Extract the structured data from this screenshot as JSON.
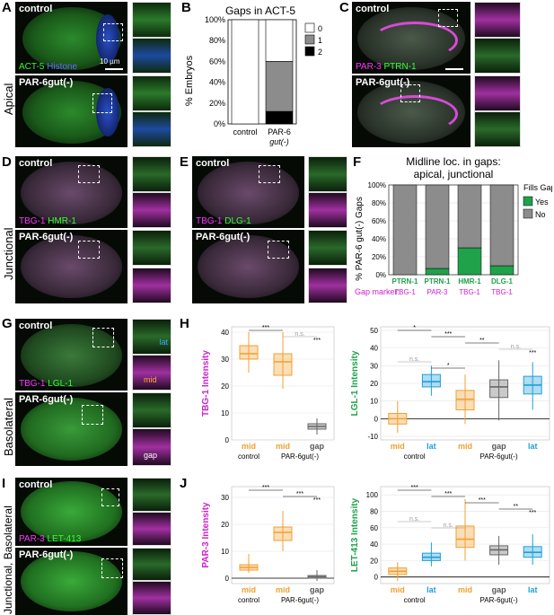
{
  "panels": {
    "A": {
      "letter": "A",
      "row": "Apical",
      "top_label": "control",
      "bottom_label": "PAR-6gut(-)",
      "stain_1": "ACT-5",
      "stain_2": "Histone",
      "scale": "10 µm"
    },
    "B": {
      "letter": "B",
      "title": "Gaps in ACT-5",
      "ylabel": "% Embryos",
      "sig": "***"
    },
    "C": {
      "letter": "C",
      "top_label": "control",
      "bottom_label": "PAR-6gut(-)",
      "stain_1": "PAR-3",
      "stain_2": "PTRN-1"
    },
    "D": {
      "letter": "D",
      "row": "Junctional",
      "top_label": "control",
      "bottom_label": "PAR-6gut(-)",
      "stain_1": "TBG-1",
      "stain_2": "HMR-1"
    },
    "E": {
      "letter": "E",
      "top_label": "control",
      "bottom_label": "PAR-6gut(-)",
      "stain_1": "TBG-1",
      "stain_2": "DLG-1"
    },
    "F": {
      "letter": "F",
      "title": "Midline loc. in gaps:",
      "title2": "apical, junctional",
      "ylabel": "% PAR-6 gut(-) Gaps",
      "legend_title": "Fills Gap",
      "legend_yes": "Yes",
      "legend_no": "No",
      "gap_marker": "Gap marker:",
      "colors": {
        "yes": "#1fa24a",
        "no": "#8c8c8c"
      }
    },
    "G": {
      "letter": "G",
      "row": "Basolateral",
      "top_label": "control",
      "bottom_label": "PAR-6gut(-)",
      "stain_1": "TBG-1",
      "stain_2": "LGL-1",
      "lat": "lat",
      "mid": "mid",
      "gap": "gap"
    },
    "H": {
      "letter": "H"
    },
    "I": {
      "letter": "I",
      "row": "Junctional, Basolateral",
      "top_label": "control",
      "bottom_label": "PAR-6gut(-)",
      "stain_1": "PAR-3",
      "stain_2": "LET-413"
    },
    "J": {
      "letter": "J"
    }
  },
  "chart_data": [
    {
      "id": "B",
      "type": "bar",
      "title": "Gaps in ACT-5",
      "ylabel": "% Embryos",
      "categories": [
        "control",
        "PAR-6 gut(-)"
      ],
      "yticks": [
        "0%",
        "20%",
        "40%",
        "60%",
        "80%",
        "100%"
      ],
      "series": [
        {
          "name": "0",
          "color": "#ffffff",
          "values": [
            100,
            40
          ]
        },
        {
          "name": "1",
          "color": "#8c8c8c",
          "values": [
            0,
            48
          ]
        },
        {
          "name": "2",
          "color": "#000000",
          "values": [
            0,
            12
          ]
        }
      ],
      "annotation": "***"
    },
    {
      "id": "F",
      "type": "bar",
      "ylabel": "% PAR-6 gut(-) Gaps",
      "categories": [
        "PTRN-1",
        "PTRN-1",
        "HMR-1",
        "DLG-1"
      ],
      "category_sub": [
        "TBG-1",
        "PAR-3",
        "TBG-1",
        "TBG-1"
      ],
      "yticks": [
        "0%",
        "20%",
        "40%",
        "60%",
        "80%",
        "100%"
      ],
      "series": [
        {
          "name": "Yes",
          "color": "#1fa24a",
          "values": [
            0,
            7,
            30,
            10
          ]
        },
        {
          "name": "No",
          "color": "#8c8c8c",
          "values": [
            100,
            93,
            70,
            90
          ]
        }
      ]
    },
    {
      "id": "H-left",
      "type": "box",
      "ylabel": "TBG-1 Intensity",
      "ylim": [
        0,
        42
      ],
      "yticks": [
        0,
        10,
        20,
        30,
        40
      ],
      "groups": [
        {
          "label": "mid",
          "color": "#f0a030",
          "q1": 30,
          "med": 32,
          "q3": 35,
          "lo": 25,
          "hi": 40
        },
        {
          "label": "mid",
          "color": "#f0a030",
          "q1": 24,
          "med": 29,
          "q3": 32,
          "lo": 19,
          "hi": 40
        },
        {
          "label": "gap",
          "color": "#666666",
          "q1": 4,
          "med": 5,
          "q3": 6,
          "lo": 2,
          "hi": 8
        }
      ],
      "xsub": [
        "control",
        "PAR-6gut(-)"
      ],
      "sigs": [
        "***",
        "n.s.",
        "***"
      ]
    },
    {
      "id": "H-right",
      "type": "box",
      "ylabel": "LGL-1 Intensity",
      "ylim": [
        -12,
        52
      ],
      "yticks": [
        -10,
        0,
        10,
        20,
        30,
        40,
        50
      ],
      "groups": [
        {
          "label": "mid",
          "color": "#f0a030",
          "q1": -3,
          "med": 0,
          "q3": 3,
          "lo": -8,
          "hi": 10
        },
        {
          "label": "lat",
          "color": "#1e9fd8",
          "q1": 18,
          "med": 21,
          "q3": 25,
          "lo": 13,
          "hi": 30
        },
        {
          "label": "mid",
          "color": "#f0a030",
          "q1": 5,
          "med": 11,
          "q3": 16,
          "lo": -3,
          "hi": 25
        },
        {
          "label": "gap",
          "color": "#666666",
          "q1": 12,
          "med": 18,
          "q3": 22,
          "lo": -1,
          "hi": 33
        },
        {
          "label": "lat",
          "color": "#1e9fd8",
          "q1": 14,
          "med": 19,
          "q3": 24,
          "lo": 5,
          "hi": 32
        }
      ],
      "xsub": [
        "control",
        "PAR-6gut(-)"
      ],
      "sigs": [
        "*",
        "***",
        "**",
        "n.s.",
        "***",
        "n.s.",
        "*"
      ]
    },
    {
      "id": "J-left",
      "type": "box",
      "ylabel": "PAR-3 Intensity",
      "ylim": [
        -2,
        34
      ],
      "yticks": [
        0,
        10,
        20,
        30
      ],
      "groups": [
        {
          "label": "mid",
          "color": "#f0a030",
          "q1": 3,
          "med": 4,
          "q3": 5,
          "lo": 2,
          "hi": 9
        },
        {
          "label": "mid",
          "color": "#f0a030",
          "q1": 14,
          "med": 17,
          "q3": 19,
          "lo": 10,
          "hi": 25
        },
        {
          "label": "gap",
          "color": "#666666",
          "q1": 0,
          "med": 0.5,
          "q3": 1,
          "lo": -1,
          "hi": 3
        }
      ],
      "xsub": [
        "control",
        "PAR-6gut(-)"
      ],
      "sigs": [
        "***",
        "***",
        "***"
      ]
    },
    {
      "id": "J-right",
      "type": "box",
      "ylabel": "LET-413 Intensity",
      "ylim": [
        -8,
        110
      ],
      "yticks": [
        0,
        20,
        40,
        60,
        80,
        100
      ],
      "groups": [
        {
          "label": "mid",
          "color": "#f0a030",
          "q1": 3,
          "med": 7,
          "q3": 11,
          "lo": -5,
          "hi": 18
        },
        {
          "label": "lat",
          "color": "#1e9fd8",
          "q1": 20,
          "med": 24,
          "q3": 29,
          "lo": 13,
          "hi": 42
        },
        {
          "label": "mid",
          "color": "#f0a030",
          "q1": 36,
          "med": 46,
          "q3": 62,
          "lo": 20,
          "hi": 95
        },
        {
          "label": "gap",
          "color": "#666666",
          "q1": 27,
          "med": 33,
          "q3": 38,
          "lo": 15,
          "hi": 50
        },
        {
          "label": "lat",
          "color": "#1e9fd8",
          "q1": 24,
          "med": 30,
          "q3": 37,
          "lo": 15,
          "hi": 52
        }
      ],
      "xsub": [
        "control",
        "PAR-6gut(-)"
      ],
      "sigs": [
        "***",
        "***",
        "***",
        "**",
        "***",
        "n.s.",
        "n.s."
      ]
    }
  ]
}
